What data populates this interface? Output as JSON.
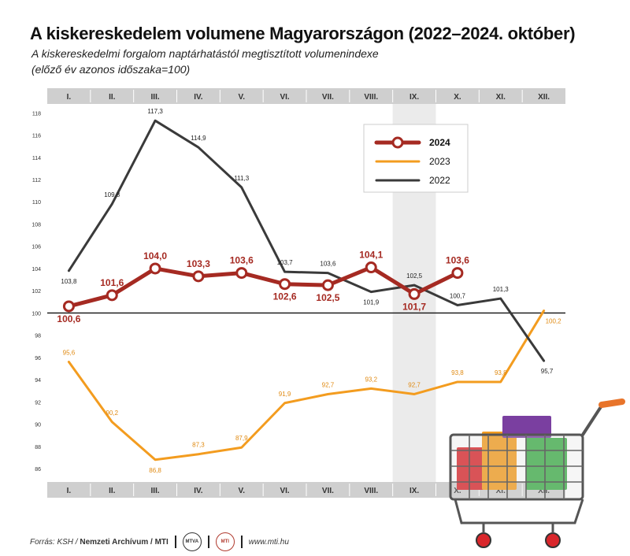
{
  "header": {
    "title": "A kiskereskedelem volumene Magyarországon (2022–2024. október)",
    "subtitle_line1": "A kiskereskedelmi forgalom naptárhatástól megtisztított volumenindexe",
    "subtitle_line2": "(előző év azonos időszaka=100)"
  },
  "footer": {
    "source_prefix": "Forrás: KSH /",
    "source_main": "Nemzeti Archívum / MTI",
    "logo1": "MTVA",
    "logo2": "MTI",
    "website": "www.mti.hu"
  },
  "colors": {
    "s2024": "#a52a22",
    "s2023": "#f39c1f",
    "s2022": "#3a3a3a",
    "band": "#cfcfcf",
    "highlight": "#ebebeb"
  },
  "chart_data": {
    "type": "line",
    "categories": [
      "I.",
      "II.",
      "III.",
      "IV.",
      "V.",
      "VI.",
      "VII.",
      "VIII.",
      "IX.",
      "X.",
      "XI.",
      "XII."
    ],
    "highlighted_category": "IX.",
    "y_ticks": [
      86,
      88,
      90,
      92,
      94,
      96,
      98,
      100,
      102,
      104,
      106,
      108,
      110,
      112,
      114,
      116,
      118
    ],
    "ylim": [
      84.8,
      118.8
    ],
    "reference_line": 100,
    "grid": false,
    "legend_position": "top-right",
    "series": [
      {
        "name": "2024",
        "color": "#a52a22",
        "values": [
          100.6,
          101.6,
          104.0,
          103.3,
          103.6,
          102.6,
          102.5,
          104.1,
          101.7,
          103.6,
          null,
          null
        ],
        "labels": [
          "100,6",
          "101,6",
          "104,0",
          "103,3",
          "103,6",
          "102,6",
          "102,5",
          "104,1",
          "101,7",
          "103,6",
          "",
          ""
        ]
      },
      {
        "name": "2023",
        "color": "#f39c1f",
        "values": [
          95.6,
          90.2,
          86.8,
          87.3,
          87.9,
          91.9,
          92.7,
          93.2,
          92.7,
          93.8,
          93.8,
          100.2
        ],
        "labels": [
          "95,6",
          "90,2",
          "86,8",
          "87,3",
          "87,9",
          "91,9",
          "92,7",
          "93,2",
          "92,7",
          "93,8",
          "93,8",
          "100,2"
        ]
      },
      {
        "name": "2022",
        "color": "#3a3a3a",
        "values": [
          103.8,
          109.8,
          117.3,
          114.9,
          111.3,
          103.7,
          103.6,
          101.9,
          102.5,
          100.7,
          101.3,
          95.7
        ],
        "labels": [
          "103,8",
          "109,8",
          "117,3",
          "114,9",
          "111,3",
          "103,7",
          "103,6",
          "101,9",
          "102,5",
          "100,7",
          "101,3",
          "95,7"
        ]
      }
    ]
  }
}
